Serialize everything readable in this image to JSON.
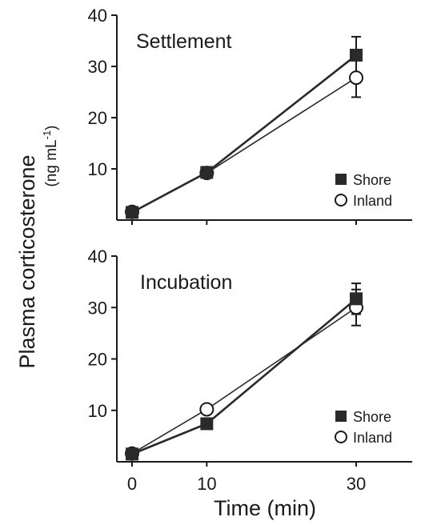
{
  "chart_data": [
    {
      "type": "line",
      "title": "Settlement",
      "x": [
        0,
        10,
        30
      ],
      "ylim": [
        0,
        40
      ],
      "yticks": [
        10,
        20,
        30,
        40
      ],
      "xticks": [],
      "series": [
        {
          "name": "Shore",
          "marker": "square",
          "color": "#2a2a2a",
          "values": [
            1.5,
            9.3,
            32.2
          ],
          "errors": [
            0.4,
            0.6,
            3.6
          ]
        },
        {
          "name": "Inland",
          "marker": "circle",
          "color": "#2a2a2a",
          "values": [
            1.6,
            9.2,
            27.8
          ],
          "errors": [
            0.4,
            0.6,
            3.8
          ]
        }
      ],
      "legend_position": "bottom-right"
    },
    {
      "type": "line",
      "title": "Incubation",
      "x": [
        0,
        10,
        30
      ],
      "ylim": [
        0,
        40
      ],
      "yticks": [
        10,
        20,
        30,
        40
      ],
      "xticks": [
        "0",
        "10",
        "30"
      ],
      "xlabel": "Time (min)",
      "series": [
        {
          "name": "Shore",
          "marker": "square",
          "color": "#2a2a2a",
          "values": [
            1.5,
            7.4,
            31.7
          ],
          "errors": [
            0.4,
            0.6,
            3.0
          ]
        },
        {
          "name": "Inland",
          "marker": "circle",
          "color": "#2a2a2a",
          "values": [
            1.6,
            10.2,
            30.0
          ],
          "errors": [
            0.4,
            0.6,
            3.5
          ]
        }
      ],
      "legend_position": "bottom-right"
    }
  ],
  "shared_ylabel": "Plasma corticosterone",
  "shared_yunit": "(ng mL-1)"
}
